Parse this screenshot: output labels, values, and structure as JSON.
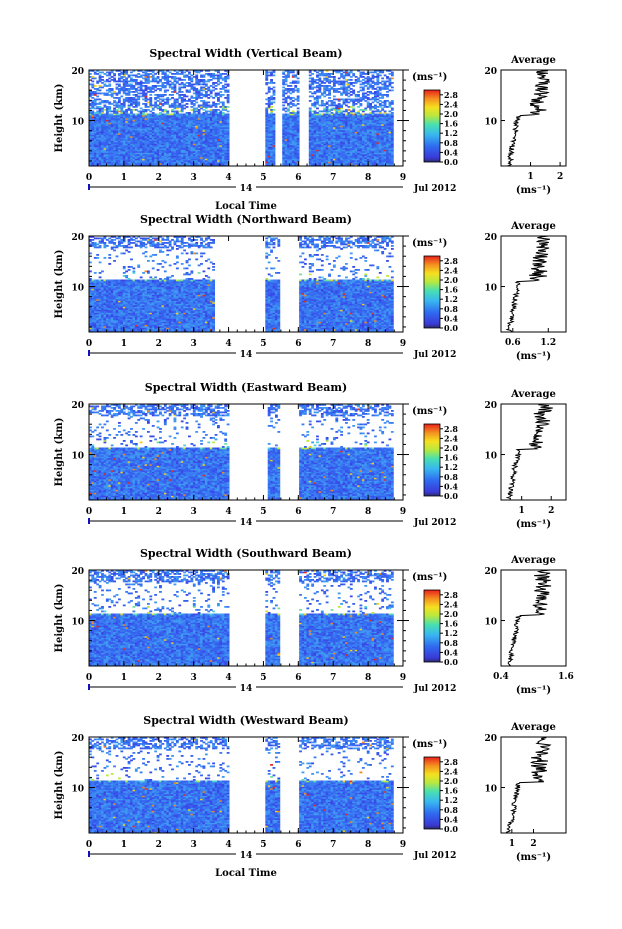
{
  "chart_data": [
    {
      "type": "heatmap",
      "title": "Spectral Width (Vertical Beam)",
      "ylabel": "Height (km)",
      "xlabel": "Local Time",
      "xticks": [
        "0",
        "1",
        "2",
        "3",
        "4",
        "5",
        "6",
        "7",
        "8",
        "9"
      ],
      "yticks": [
        "10",
        "20"
      ],
      "xlim": [
        0,
        9
      ],
      "ylim": [
        1,
        20
      ],
      "day_label": "14",
      "date_label": "Jul 2012",
      "colorbar": {
        "unit": "(ms⁻¹)",
        "ticks": [
          "0.0",
          "0.4",
          "0.8",
          "1.2",
          "1.6",
          "2.0",
          "2.4",
          "2.8"
        ],
        "range": [
          0,
          3.0
        ]
      },
      "gaps": [
        [
          4.0,
          5.05
        ],
        [
          5.3,
          5.55
        ],
        [
          6.0,
          6.3
        ]
      ],
      "average": {
        "title": "Average",
        "xlabel": "(ms⁻¹)",
        "xticks": [
          "1",
          "2"
        ],
        "xlim": [
          0,
          2.2
        ],
        "yticks": [
          "10",
          "20"
        ]
      }
    },
    {
      "type": "heatmap",
      "title": "Spectral Width (Northward Beam)",
      "ylabel": "Height (km)",
      "xlabel": "",
      "xticks": [
        "0",
        "1",
        "2",
        "3",
        "4",
        "5",
        "6",
        "7",
        "8",
        "9"
      ],
      "yticks": [
        "10",
        "20"
      ],
      "xlim": [
        0,
        9
      ],
      "ylim": [
        1,
        20
      ],
      "day_label": "14",
      "date_label": "Jul 2012",
      "colorbar": {
        "unit": "(ms⁻¹)",
        "ticks": [
          "0.0",
          "0.4",
          "0.8",
          "1.2",
          "1.6",
          "2.0",
          "2.4",
          "2.8"
        ],
        "range": [
          0,
          3.0
        ]
      },
      "gaps": [
        [
          3.6,
          5.05
        ],
        [
          5.45,
          5.55
        ],
        [
          5.55,
          6.0
        ]
      ],
      "average": {
        "title": "Average",
        "xlabel": "(ms⁻¹)",
        "xticks": [
          "0.6",
          "1.2"
        ],
        "xlim": [
          0.4,
          1.5
        ],
        "yticks": [
          "10",
          "20"
        ]
      }
    },
    {
      "type": "heatmap",
      "title": "Spectral Width (Eastward Beam)",
      "ylabel": "Height (km)",
      "xlabel": "",
      "xticks": [
        "0",
        "1",
        "2",
        "3",
        "4",
        "5",
        "6",
        "7",
        "8",
        "9"
      ],
      "yticks": [
        "10",
        "20"
      ],
      "xlim": [
        0,
        9
      ],
      "ylim": [
        1,
        20
      ],
      "day_label": "14",
      "date_label": "Jul 2012",
      "colorbar": {
        "unit": "(ms⁻¹)",
        "ticks": [
          "0.0",
          "0.4",
          "0.8",
          "1.2",
          "1.6",
          "2.0",
          "2.4",
          "2.8"
        ],
        "range": [
          0,
          3.0
        ]
      },
      "gaps": [
        [
          4.0,
          5.1
        ],
        [
          5.5,
          6.0
        ]
      ],
      "average": {
        "title": "Average",
        "xlabel": "(ms⁻¹)",
        "xticks": [
          "1",
          "2"
        ],
        "xlim": [
          0.3,
          2.5
        ],
        "yticks": [
          "10",
          "20"
        ]
      }
    },
    {
      "type": "heatmap",
      "title": "Spectral Width (Southward Beam)",
      "ylabel": "Height (km)",
      "xlabel": "",
      "xticks": [
        "0",
        "1",
        "2",
        "3",
        "4",
        "5",
        "6",
        "7",
        "8",
        "9"
      ],
      "yticks": [
        "10",
        "20"
      ],
      "xlim": [
        0,
        9
      ],
      "ylim": [
        1,
        20
      ],
      "day_label": "14",
      "date_label": "Jul 2012",
      "colorbar": {
        "unit": "(ms⁻¹)",
        "ticks": [
          "0.0",
          "0.4",
          "0.8",
          "1.2",
          "1.6",
          "2.0",
          "2.4",
          "2.8"
        ],
        "range": [
          0,
          3.0
        ]
      },
      "gaps": [
        [
          4.0,
          5.05
        ],
        [
          5.5,
          6.0
        ]
      ],
      "average": {
        "title": "Average",
        "xlabel": "(ms⁻¹)",
        "xticks": [
          "0.4",
          "1.6"
        ],
        "xlim": [
          0.4,
          1.6
        ],
        "yticks": [
          "10",
          "20"
        ]
      }
    },
    {
      "type": "heatmap",
      "title": "Spectral Width (Westward Beam)",
      "ylabel": "Height (km)",
      "xlabel": "Local Time",
      "xticks": [
        "0",
        "1",
        "2",
        "3",
        "4",
        "5",
        "6",
        "7",
        "8",
        "9"
      ],
      "yticks": [
        "10",
        "20"
      ],
      "xlim": [
        0,
        9
      ],
      "ylim": [
        1,
        20
      ],
      "day_label": "14",
      "date_label": "Jul 2012",
      "colorbar": {
        "unit": "(ms⁻¹)",
        "ticks": [
          "0.0",
          "0.4",
          "0.8",
          "1.2",
          "1.6",
          "2.0",
          "2.4",
          "2.8"
        ],
        "range": [
          0,
          3.0
        ]
      },
      "gaps": [
        [
          4.0,
          5.05
        ],
        [
          5.5,
          6.0
        ]
      ],
      "average": {
        "title": "Average",
        "xlabel": "(ms⁻¹)",
        "xticks": [
          "1",
          "2"
        ],
        "xlim": [
          0.5,
          3.5
        ],
        "yticks": [
          "10",
          "20"
        ]
      }
    }
  ],
  "figure": {
    "bottom_xlabel": "Local Time"
  }
}
